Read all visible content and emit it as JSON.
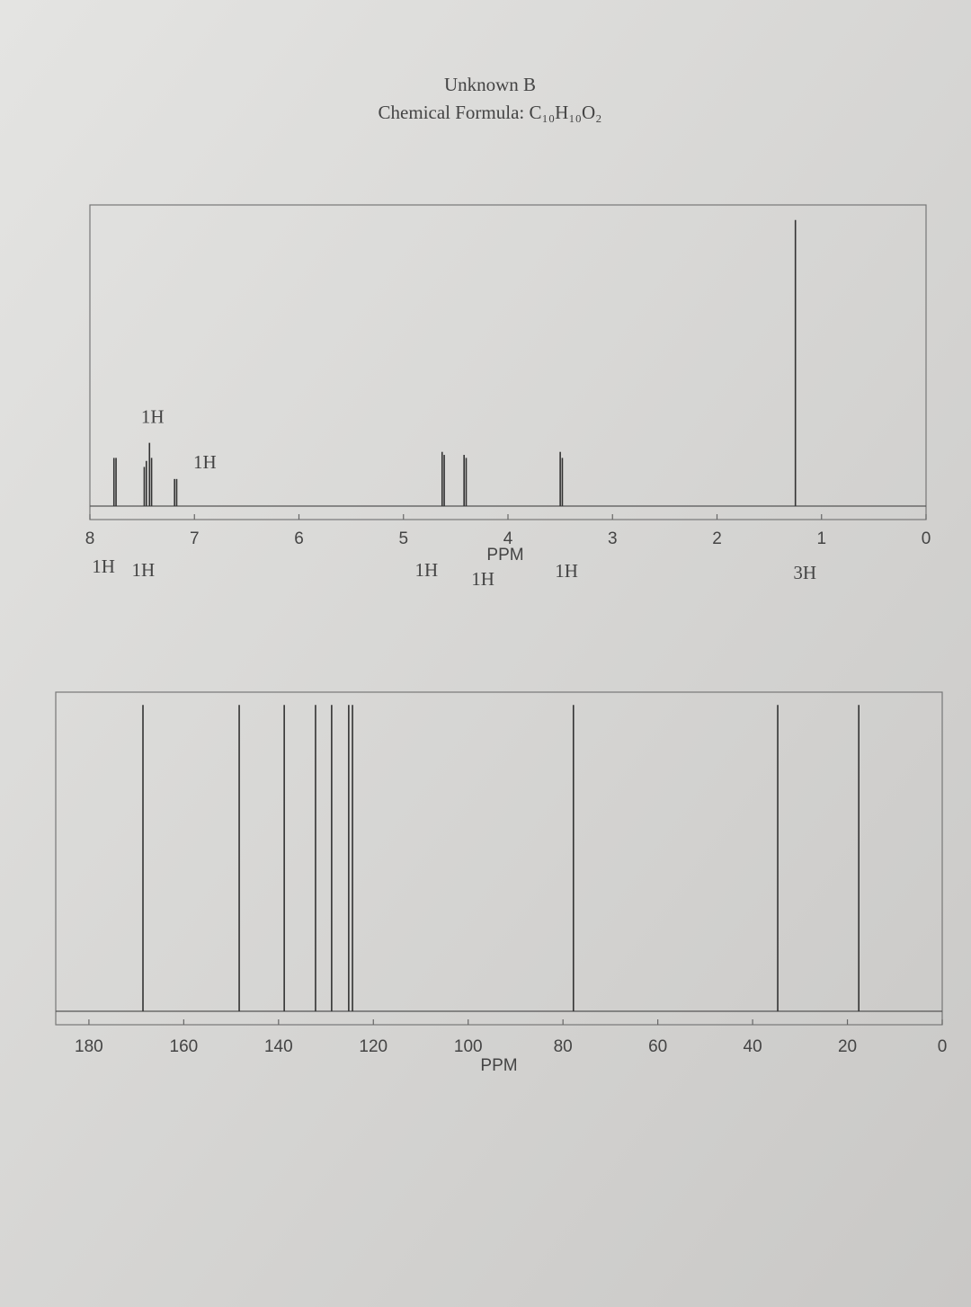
{
  "chart_data": [
    {
      "type": "spectrum",
      "title": "Unknown B",
      "subtitle": "Chemical Formula: C₁₀H₁₀O₂",
      "x": [
        7.77,
        7.75,
        7.48,
        7.46,
        7.43,
        7.41,
        7.19,
        7.17,
        4.63,
        4.61,
        4.42,
        4.4,
        3.5,
        3.48,
        1.25
      ],
      "values": [
        16,
        16,
        13,
        15,
        21,
        16,
        9,
        9,
        18,
        17,
        17,
        16,
        18,
        16,
        95
      ],
      "xlim": [
        8,
        0
      ],
      "xticks": [
        8,
        7,
        6,
        5,
        4,
        3,
        2,
        1,
        0
      ],
      "ylim": [
        0,
        100
      ],
      "xlabel": "PPM",
      "annotations_above": [
        {
          "text": "1H",
          "x": 7.4,
          "y": 29
        },
        {
          "text": "1H",
          "x": 6.9,
          "y": 14
        }
      ],
      "annotations_below": [
        {
          "text": "1H",
          "x": 7.87
        },
        {
          "text": "1H",
          "x": 7.49
        },
        {
          "text": "1H",
          "x": 4.78
        },
        {
          "text": "1H",
          "x": 4.24
        },
        {
          "text": "1H",
          "x": 3.44
        },
        {
          "text": "3H",
          "x": 1.16
        }
      ]
    },
    {
      "type": "spectrum",
      "x": [
        168.6,
        148.3,
        138.8,
        132.2,
        128.8,
        125.2,
        124.4,
        77.8,
        34.7,
        17.6
      ],
      "values": [
        96,
        96,
        96,
        96,
        96,
        96,
        96,
        96,
        96,
        96
      ],
      "xlim": [
        187,
        0
      ],
      "xticks": [
        180,
        160,
        140,
        120,
        100,
        80,
        60,
        40,
        20,
        0
      ],
      "ylim": [
        0,
        100
      ],
      "xlabel": "PPM"
    }
  ]
}
